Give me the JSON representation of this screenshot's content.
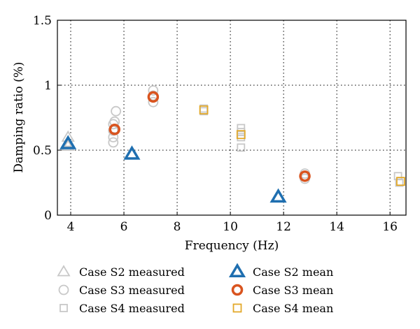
{
  "chart_data": {
    "type": "scatter",
    "title": "",
    "xlabel": "Frequency (Hz)",
    "ylabel": "Damping ratio (%)",
    "xlim": [
      3.5,
      16.6
    ],
    "ylim": [
      0,
      1.5
    ],
    "xticks": [
      4,
      6,
      8,
      10,
      12,
      14,
      16
    ],
    "yticks": [
      0,
      0.5,
      1,
      1.5
    ],
    "xtick_labels": [
      "4",
      "6",
      "8",
      "10",
      "12",
      "14",
      "16"
    ],
    "ytick_labels": [
      "0",
      "0.5",
      "1",
      "1.5"
    ],
    "grid": "dotted",
    "legend_position": "bottom",
    "colors": {
      "measured": "#c8c8c8",
      "s2_mean": "#1f6fb0",
      "s3_mean": "#d9541f",
      "s4_mean": "#e3a92a"
    },
    "series": [
      {
        "name": "Case S2 measured",
        "marker": "triangle",
        "style": "measured",
        "x": [
          3.9,
          3.9,
          3.9
        ],
        "y": [
          0.6,
          0.56,
          0.53
        ]
      },
      {
        "name": "Case S3 measured",
        "marker": "circle",
        "style": "measured",
        "x": [
          5.6,
          5.6,
          5.6,
          5.6,
          5.65,
          5.7,
          7.1,
          7.1,
          7.1,
          12.8,
          12.8,
          12.8
        ],
        "y": [
          0.56,
          0.6,
          0.65,
          0.7,
          0.72,
          0.8,
          0.96,
          0.92,
          0.87,
          0.28,
          0.3,
          0.32
        ]
      },
      {
        "name": "Case S4 measured",
        "marker": "square",
        "style": "measured",
        "x": [
          9.0,
          9.0,
          10.4,
          10.4,
          10.4,
          10.4,
          16.3,
          16.35
        ],
        "y": [
          0.82,
          0.8,
          0.67,
          0.64,
          0.6,
          0.52,
          0.3,
          0.25
        ]
      },
      {
        "name": "Case S2 mean",
        "marker": "triangle",
        "style": "s2_mean",
        "x": [
          3.9,
          6.3,
          11.8
        ],
        "y": [
          0.55,
          0.47,
          0.14
        ]
      },
      {
        "name": "Case S3 mean",
        "marker": "circle",
        "style": "s3_mean",
        "x": [
          5.65,
          7.1,
          12.8
        ],
        "y": [
          0.66,
          0.91,
          0.3
        ]
      },
      {
        "name": "Case S4 mean",
        "marker": "square",
        "style": "s4_mean",
        "x": [
          9.0,
          10.4,
          16.4
        ],
        "y": [
          0.81,
          0.62,
          0.26
        ]
      }
    ]
  }
}
